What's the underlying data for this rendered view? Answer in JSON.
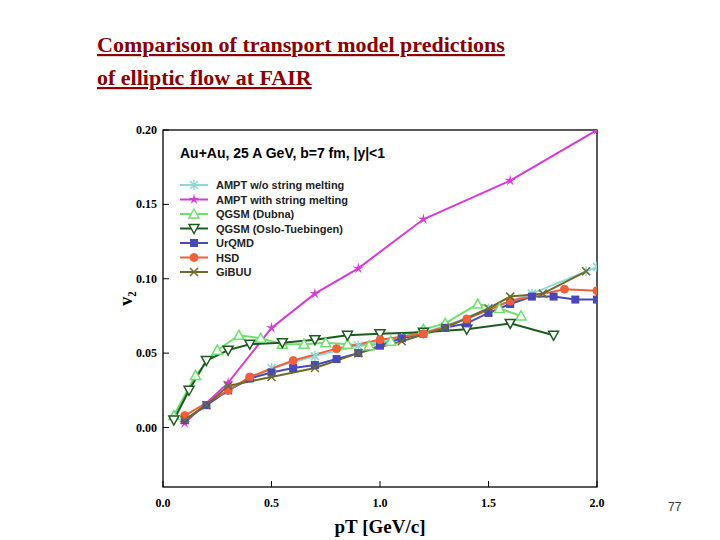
{
  "slide": {
    "title_lines": [
      "Comparison of transport model predictions",
      "of elliptic flow at FAIR"
    ],
    "page_number": "77"
  },
  "chart_data": {
    "type": "line",
    "title": "Au+Au,  25 A GeV,  b=7 fm, |y|<1",
    "x_label": "pT [GeV/c]",
    "y_label": "v₂",
    "xlim": [
      0,
      2
    ],
    "ylim": [
      -0.04,
      0.2
    ],
    "xticks": [
      {
        "value": 0,
        "label": "0.0"
      },
      0.5,
      {
        "value": 1,
        "label": "1.0"
      },
      1.5,
      {
        "value": 2,
        "label": "2.0"
      }
    ],
    "yticks": [
      {
        "value": 0,
        "label": "0.00"
      },
      {
        "value": 0.05,
        "label": "0.05"
      },
      {
        "value": 0.1,
        "label": "0.10"
      },
      {
        "value": 0.15,
        "label": "0.15"
      },
      {
        "value": 0.2,
        "label": "0.20"
      }
    ],
    "grid": false,
    "legend": "upper left",
    "series": [
      {
        "name": "AMPT w/o string melting",
        "color": "#8fd8d8",
        "marker": "asterisk",
        "x": [
          0.1,
          0.3,
          0.5,
          0.7,
          0.9,
          1.1,
          1.3,
          1.5,
          1.7,
          1.95,
          2.0
        ],
        "values": [
          0.005,
          0.025,
          0.04,
          0.048,
          0.055,
          0.06,
          0.068,
          0.08,
          0.09,
          0.105,
          0.108
        ]
      },
      {
        "name": "AMPT with string melting",
        "color": "#d83ad8",
        "marker": "star",
        "x": [
          0.1,
          0.3,
          0.5,
          0.7,
          0.9,
          1.2,
          1.6,
          2.0
        ],
        "values": [
          0.003,
          0.03,
          0.067,
          0.09,
          0.107,
          0.14,
          0.166,
          0.2
        ]
      },
      {
        "name": "QGSM (Dubna)",
        "color": "#6ee06e",
        "marker": "triangle",
        "x": [
          0.05,
          0.15,
          0.25,
          0.35,
          0.45,
          0.55,
          0.65,
          0.75,
          0.85,
          0.95,
          1.05,
          1.2,
          1.3,
          1.45,
          1.55,
          1.65
        ],
        "values": [
          0.008,
          0.035,
          0.052,
          0.062,
          0.06,
          0.056,
          0.056,
          0.057,
          0.056,
          0.055,
          0.058,
          0.066,
          0.07,
          0.083,
          0.08,
          0.075
        ]
      },
      {
        "name": "QGSM (Oslo-Tuebingen)",
        "color": "#1e5a1e",
        "marker": "triangle-down",
        "x": [
          0.05,
          0.12,
          0.2,
          0.3,
          0.4,
          0.55,
          0.7,
          0.85,
          1.0,
          1.2,
          1.4,
          1.6,
          1.8
        ],
        "values": [
          0.005,
          0.025,
          0.045,
          0.052,
          0.056,
          0.057,
          0.059,
          0.062,
          0.063,
          0.064,
          0.066,
          0.07,
          0.062
        ]
      },
      {
        "name": "UrQMD",
        "color": "#4848b8",
        "marker": "square",
        "x": [
          0.1,
          0.2,
          0.3,
          0.4,
          0.5,
          0.6,
          0.7,
          0.8,
          0.9,
          1.0,
          1.1,
          1.2,
          1.3,
          1.4,
          1.5,
          1.6,
          1.7,
          1.8,
          1.9,
          2.0
        ],
        "values": [
          0.005,
          0.015,
          0.025,
          0.033,
          0.037,
          0.04,
          0.042,
          0.046,
          0.05,
          0.055,
          0.06,
          0.063,
          0.067,
          0.07,
          0.077,
          0.083,
          0.088,
          0.088,
          0.086,
          0.086
        ]
      },
      {
        "name": "HSD",
        "color": "#f0603a",
        "marker": "circle",
        "x": [
          0.1,
          0.3,
          0.4,
          0.6,
          0.8,
          1.0,
          1.2,
          1.4,
          1.6,
          1.85,
          2.0
        ],
        "values": [
          0.008,
          0.025,
          0.034,
          0.045,
          0.053,
          0.059,
          0.063,
          0.073,
          0.085,
          0.093,
          0.092
        ]
      },
      {
        "name": "GiBUU",
        "color": "#6b6b2a",
        "marker": "x",
        "x": [
          0.1,
          0.2,
          0.3,
          0.5,
          0.7,
          0.9,
          1.1,
          1.3,
          1.5,
          1.6,
          1.75,
          1.95
        ],
        "values": [
          0.005,
          0.015,
          0.028,
          0.034,
          0.04,
          0.05,
          0.058,
          0.067,
          0.08,
          0.088,
          0.09,
          0.105
        ]
      }
    ]
  }
}
